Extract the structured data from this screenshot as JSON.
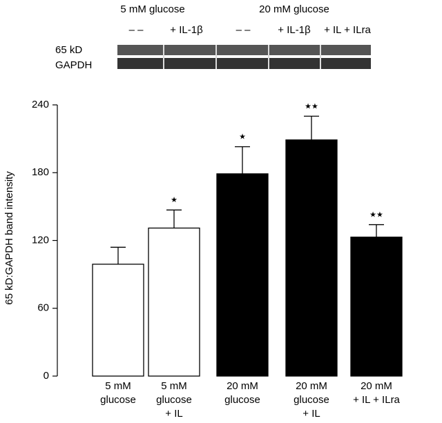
{
  "blot": {
    "group_labels": [
      "5 mM glucose",
      "20 mM glucose"
    ],
    "lane_labels": [
      "– –",
      "+ IL-1β",
      "– –",
      "+ IL-1β",
      "+ IL + ILra"
    ],
    "row_labels": [
      "65 kD",
      "GAPDH"
    ]
  },
  "chart_data": {
    "type": "bar",
    "ylabel": "65 kD:GAPDH band intensity",
    "categories": [
      [
        "5 mM",
        "glucose"
      ],
      [
        "5 mM",
        "glucose",
        "+ IL"
      ],
      [
        "20 mM",
        "glucose"
      ],
      [
        "20 mM",
        "glucose",
        "+ IL"
      ],
      [
        "20 mM",
        "+ IL + ILra"
      ]
    ],
    "values": [
      99,
      131,
      179,
      209,
      123
    ],
    "errors": [
      15,
      16,
      24,
      21,
      11
    ],
    "colors": [
      "#ffffff",
      "#ffffff",
      "#000000",
      "#000000",
      "#000000"
    ],
    "significance": [
      null,
      "★",
      "★",
      "★★",
      "★★"
    ],
    "ylim": [
      0,
      240
    ],
    "yticks": [
      0,
      60,
      120,
      180,
      240
    ]
  }
}
